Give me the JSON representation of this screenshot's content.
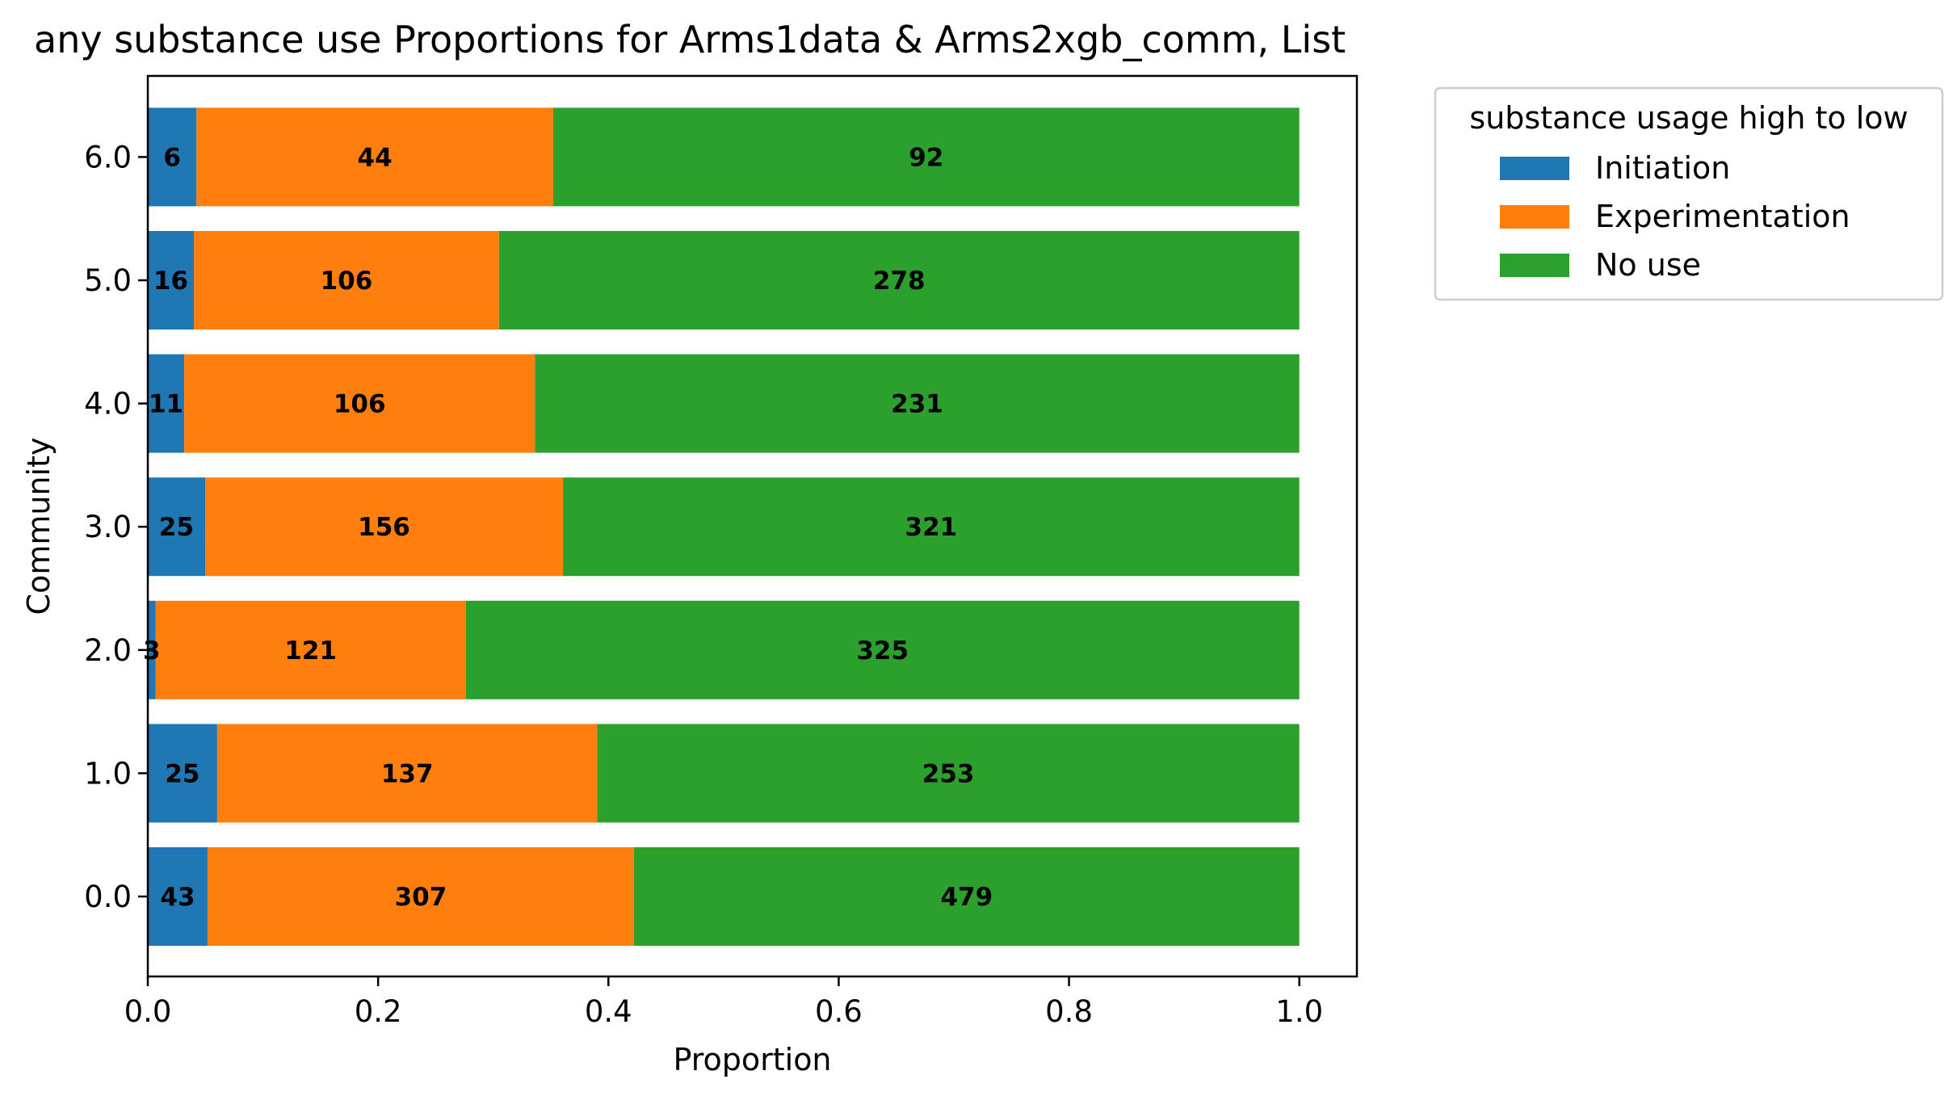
{
  "chart_data": {
    "type": "bar",
    "orientation": "horizontal",
    "stacked": true,
    "normalized": true,
    "title": "any substance use Proportions for Arms1data & Arms2xgb_comm, List",
    "xlabel": "Proportion",
    "ylabel": "Community",
    "xlim": [
      0,
      1.05
    ],
    "xticks": [
      "0.0",
      "0.2",
      "0.4",
      "0.6",
      "0.8",
      "1.0"
    ],
    "categories": [
      "0.0",
      "1.0",
      "2.0",
      "3.0",
      "4.0",
      "5.0",
      "6.0"
    ],
    "series": [
      {
        "name": "Initiation",
        "color": "#1f77b4",
        "counts": [
          43,
          25,
          3,
          25,
          11,
          16,
          6
        ]
      },
      {
        "name": "Experimentation",
        "color": "#ff7f0e",
        "counts": [
          307,
          137,
          121,
          156,
          106,
          106,
          44
        ]
      },
      {
        "name": "No use",
        "color": "#2ca02c",
        "counts": [
          479,
          253,
          325,
          321,
          231,
          278,
          92
        ]
      }
    ],
    "legend": {
      "title": "substance usage high to low",
      "placement": "outside-upper-right"
    },
    "grid": false
  }
}
